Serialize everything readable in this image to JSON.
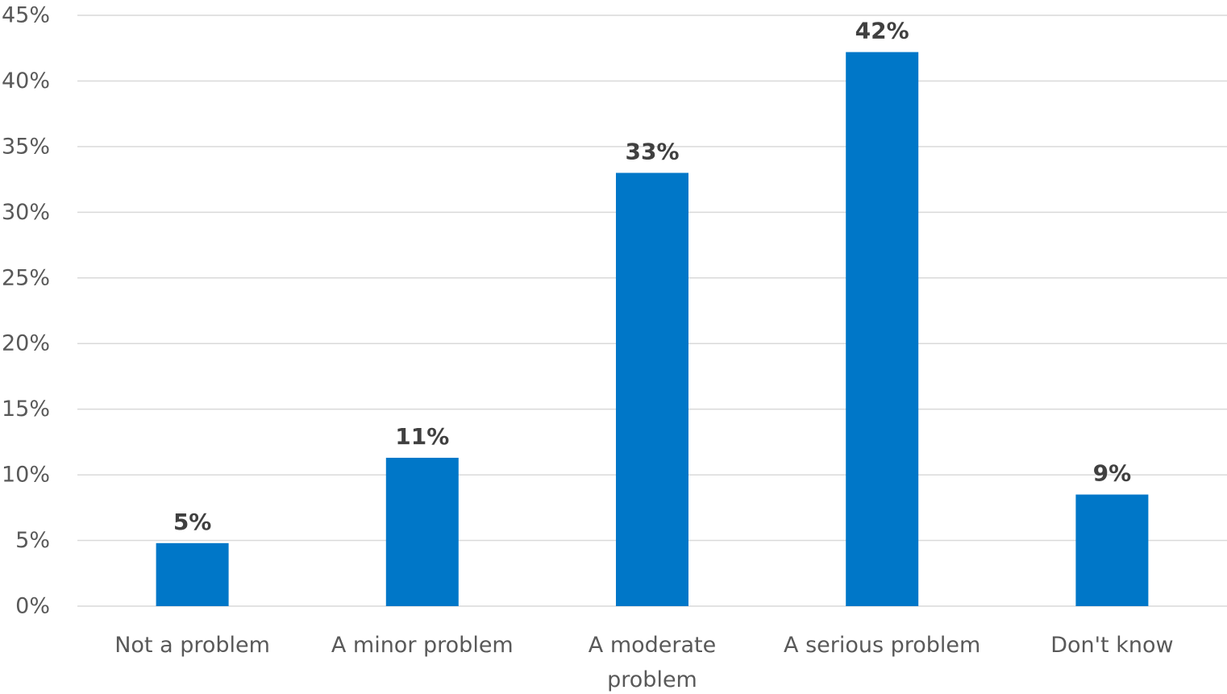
{
  "chart_data": {
    "type": "bar",
    "categories": [
      [
        "Not a problem"
      ],
      [
        "A minor problem"
      ],
      [
        "A moderate",
        "problem"
      ],
      [
        "A serious problem"
      ],
      [
        "Don't know"
      ]
    ],
    "values": [
      4.8,
      11.3,
      33.0,
      42.2,
      8.5
    ],
    "data_labels": [
      "5%",
      "11%",
      "33%",
      "42%",
      "9%"
    ],
    "y_ticks": [
      "0%",
      "5%",
      "10%",
      "15%",
      "20%",
      "25%",
      "30%",
      "35%",
      "40%",
      "45%"
    ],
    "ylim": [
      0,
      45
    ],
    "title": "",
    "xlabel": "",
    "ylabel": "",
    "grid": true,
    "legend": "none",
    "bar_color": "#0077c8"
  }
}
